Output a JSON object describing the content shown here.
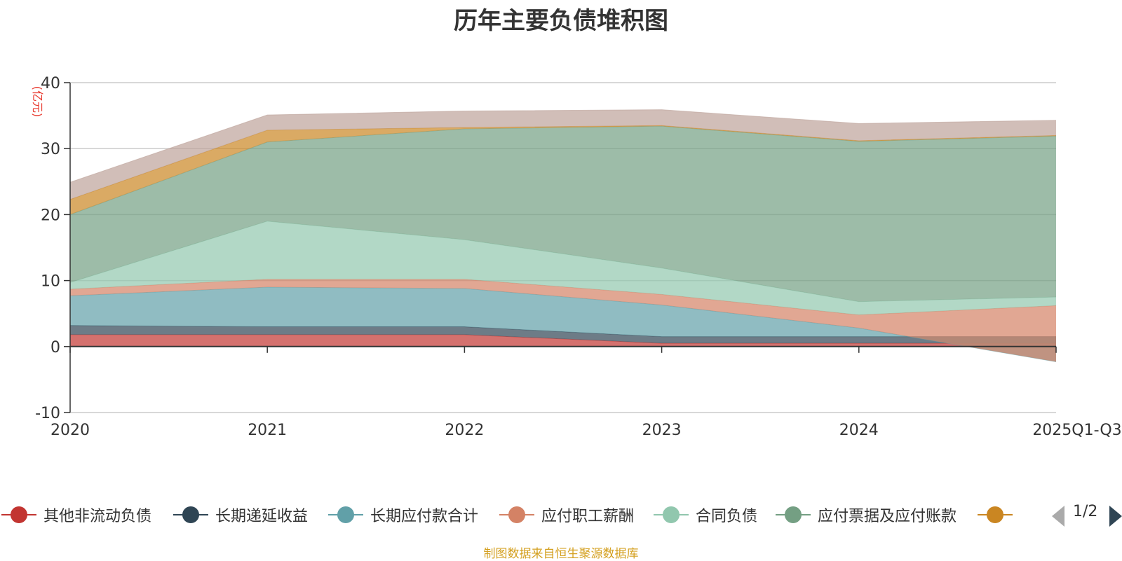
{
  "chart_data": {
    "type": "area",
    "stacked": true,
    "title": "历年主要负债堆积图",
    "ylabel": "(亿元)",
    "ylim": [
      -10,
      40
    ],
    "yticks": [
      -10,
      0,
      10,
      20,
      30,
      40
    ],
    "grid": true,
    "categories": [
      "2020",
      "2021",
      "2022",
      "2023",
      "2024",
      "2025Q1-Q3"
    ],
    "series": [
      {
        "name": "其他非流动负债",
        "color": "#c23531",
        "values": [
          1.8,
          1.8,
          1.8,
          0.5,
          0.5,
          0.5
        ]
      },
      {
        "name": "长期递延收益",
        "color": "#2f4554",
        "values": [
          1.4,
          1.2,
          1.2,
          1.0,
          1.0,
          1.0
        ]
      },
      {
        "name": "长期应付款合计",
        "color": "#61a0a8",
        "values": [
          4.5,
          6.0,
          5.8,
          4.8,
          1.3,
          -3.8
        ]
      },
      {
        "name": "应付职工薪酬",
        "color": "#d48265",
        "values": [
          1.0,
          1.2,
          1.4,
          1.6,
          2.0,
          8.5
        ]
      },
      {
        "name": "合同负债",
        "color": "#91c7ae",
        "values": [
          1.0,
          8.8,
          6.0,
          4.0,
          2.0,
          1.3
        ]
      },
      {
        "name": "应付票据及应付账款",
        "color": "#749f83",
        "values": [
          10.3,
          12.0,
          16.8,
          21.5,
          24.3,
          24.4
        ]
      },
      {
        "name": "",
        "color": "#ca8622",
        "values": [
          2.3,
          1.8,
          0.2,
          0.1,
          0.1,
          0.1
        ]
      },
      {
        "name": "",
        "color": "#bda29a",
        "values": [
          2.6,
          2.3,
          2.5,
          2.4,
          2.6,
          2.3
        ]
      }
    ]
  },
  "legend": {
    "page_indicator": "1/2"
  },
  "source_note": "制图数据来自恒生聚源数据库"
}
